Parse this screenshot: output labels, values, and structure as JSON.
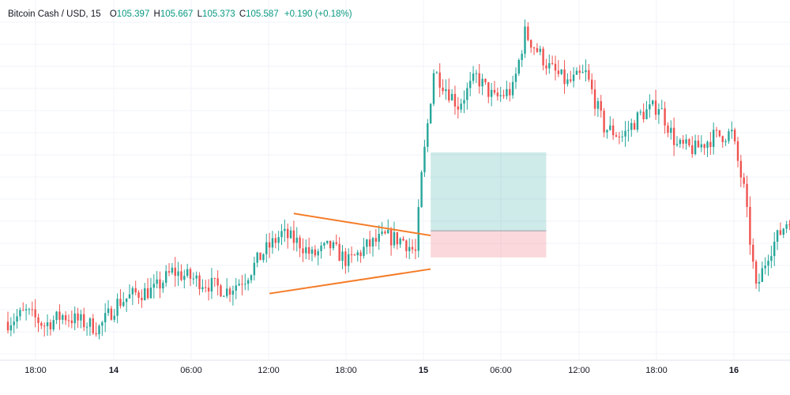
{
  "legend": {
    "symbol": "Bitcoin Cash / USD, 15",
    "open_key": "O",
    "open": "105.397",
    "high_key": "H",
    "high": "105.667",
    "low_key": "L",
    "low": "105.373",
    "close_key": "C",
    "close": "105.587",
    "change": "+0.190 (+0.18%)"
  },
  "colors": {
    "up": "#26a69a",
    "down": "#ef5350",
    "trendline": "#f57c28",
    "grid": "#f0f3fa",
    "profit_zone": "#26a69a",
    "stop_zone": "#f28e9a"
  },
  "chart_data": {
    "type": "candlestick",
    "timeframe": "15",
    "x_ticks": [
      {
        "label": "18:00",
        "bold": false
      },
      {
        "label": "14",
        "bold": true
      },
      {
        "label": "06:00",
        "bold": false
      },
      {
        "label": "12:00",
        "bold": false
      },
      {
        "label": "18:00",
        "bold": false
      },
      {
        "label": "15",
        "bold": true
      },
      {
        "label": "06:00",
        "bold": false
      },
      {
        "label": "12:00",
        "bold": false
      },
      {
        "label": "18:00",
        "bold": false
      },
      {
        "label": "16",
        "bold": true
      }
    ],
    "price_path": [
      [
        0,
        102.0
      ],
      [
        6,
        102.3
      ],
      [
        12,
        101.9
      ],
      [
        18,
        102.2
      ],
      [
        24,
        102.0
      ],
      [
        30,
        101.8
      ],
      [
        36,
        102.6
      ],
      [
        42,
        102.9
      ],
      [
        48,
        103.0
      ],
      [
        54,
        103.6
      ],
      [
        60,
        103.4
      ],
      [
        66,
        103.2
      ],
      [
        72,
        103.0
      ],
      [
        78,
        103.4
      ],
      [
        84,
        104.2
      ],
      [
        90,
        104.8
      ],
      [
        96,
        104.5
      ],
      [
        100,
        104.1
      ],
      [
        106,
        104.4
      ],
      [
        112,
        103.9
      ],
      [
        118,
        104.4
      ],
      [
        124,
        104.7
      ],
      [
        130,
        104.6
      ],
      [
        134,
        104.2
      ],
      [
        136,
        106.6
      ],
      [
        140,
        110.0
      ],
      [
        143,
        109.6
      ],
      [
        148,
        108.9
      ],
      [
        154,
        109.8
      ],
      [
        160,
        109.1
      ],
      [
        166,
        109.4
      ],
      [
        170,
        111.2
      ],
      [
        178,
        110.1
      ],
      [
        184,
        109.6
      ],
      [
        190,
        109.9
      ],
      [
        196,
        108.2
      ],
      [
        202,
        107.9
      ],
      [
        208,
        108.6
      ],
      [
        214,
        108.9
      ],
      [
        220,
        107.6
      ],
      [
        226,
        107.5
      ],
      [
        232,
        107.9
      ],
      [
        238,
        108.0
      ],
      [
        242,
        106.2
      ],
      [
        246,
        103.0
      ],
      [
        250,
        104.2
      ],
      [
        258,
        105.5
      ]
    ],
    "shapes": {
      "triangle_upper_line": [
        [
          94,
          105.45
        ],
        [
          139,
          104.75
        ]
      ],
      "triangle_lower_line": [
        [
          86,
          102.9
        ],
        [
          139,
          103.68
        ]
      ],
      "long_position": {
        "from_bar": 139,
        "to_bar": 177,
        "entry": 104.9,
        "target": 107.4,
        "stop": 104.05
      }
    }
  }
}
